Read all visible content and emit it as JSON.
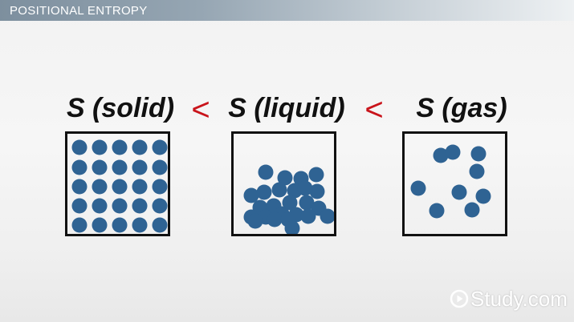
{
  "banner": {
    "title": "POSITIONAL ENTROPY"
  },
  "phases": [
    {
      "label": "S (solid)"
    },
    {
      "label": "S (liquid)"
    },
    {
      "label": "S (gas)"
    }
  ],
  "comparators": [
    "<",
    "<"
  ],
  "brand": {
    "name": "Study.com"
  },
  "colors": {
    "molecule": "#2f6393",
    "comparator": "#c9141b",
    "banner": "#7d8f9e"
  }
}
